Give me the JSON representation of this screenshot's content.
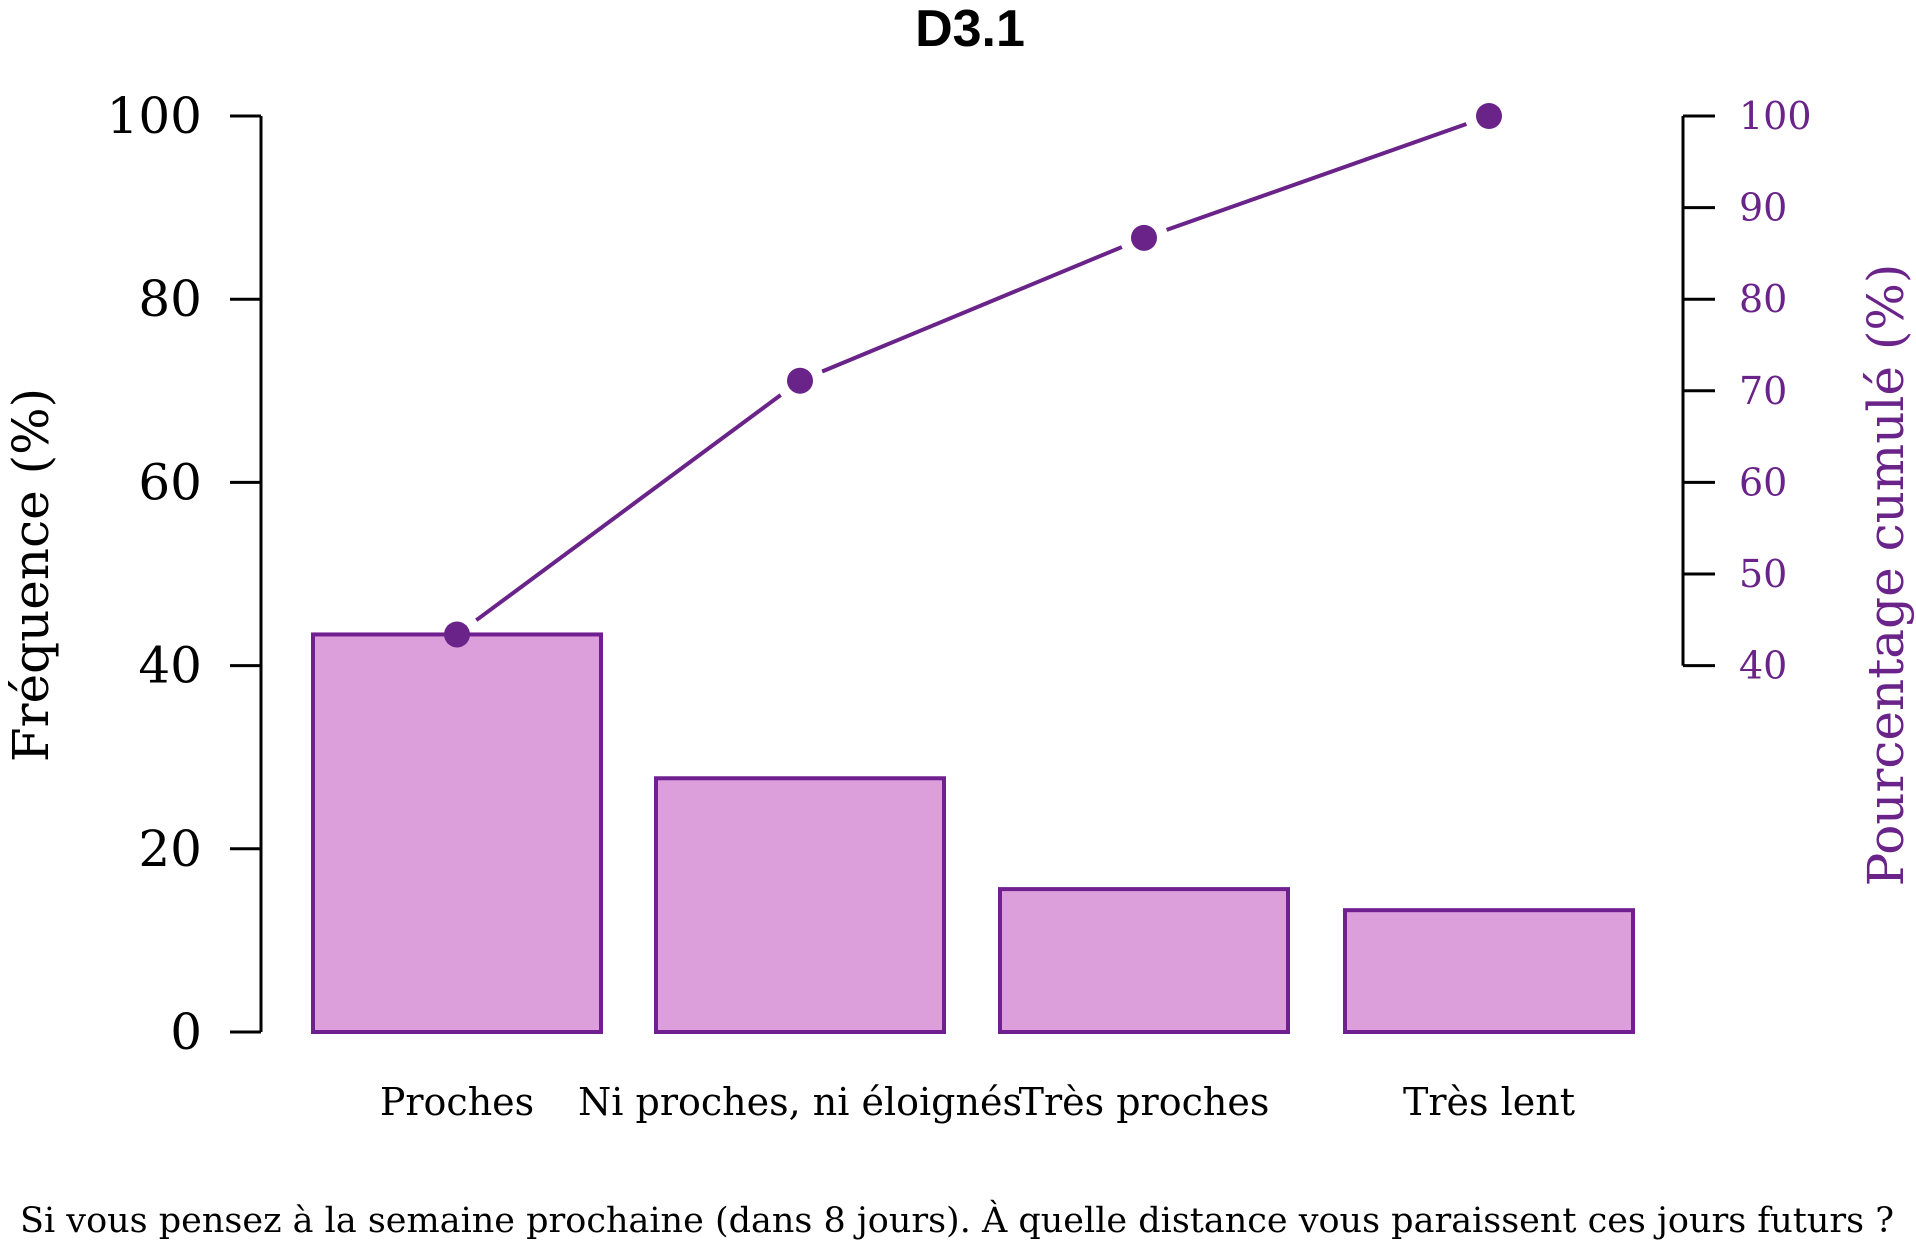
{
  "colors": {
    "bar_fill": "#dc9fdb",
    "bar_stroke": "#6f1f8f",
    "accent": "#6a2389",
    "axis": "#000000"
  },
  "chart_data": {
    "type": "bar",
    "title": "D3.1",
    "categories": [
      "Proches",
      "Ni proches, ni éloignés",
      "Très proches",
      "Très lent"
    ],
    "values": [
      43.4,
      27.7,
      15.6,
      13.3
    ],
    "cumulative": [
      43.4,
      71.1,
      86.7,
      100
    ],
    "ylabel": "Fréquence (%)",
    "y2label": "Pourcentage cumulé (%)",
    "ylim": [
      0,
      100
    ],
    "y2lim": [
      40,
      100
    ],
    "yticks": [
      0,
      20,
      40,
      60,
      80,
      100
    ],
    "y2ticks": [
      40,
      50,
      60,
      70,
      80,
      90,
      100
    ],
    "footnote": "Si vous pensez à la semaine prochaine (dans 8 jours). À quelle distance vous paraissent ces jours futurs ?",
    "grid": false,
    "legend": "none"
  }
}
